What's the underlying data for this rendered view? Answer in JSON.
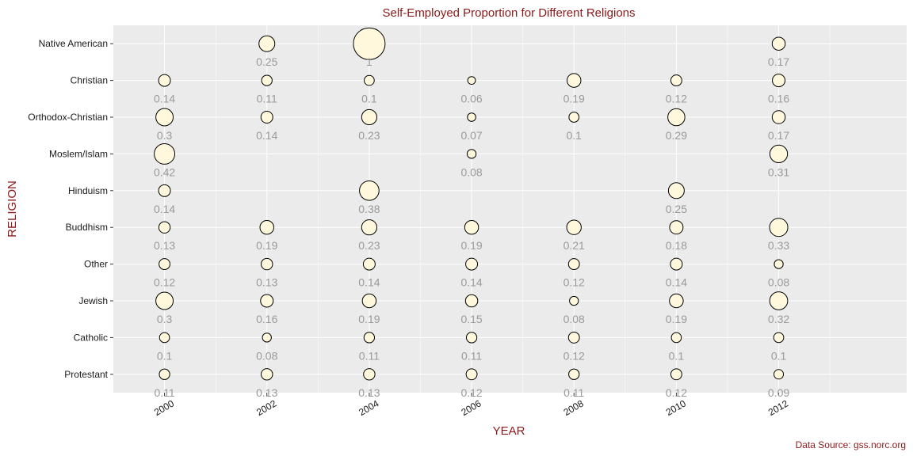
{
  "colors": {
    "panel_background": "#ebebeb",
    "grid": "#ffffff",
    "bubble_fill": "#fff8dc",
    "bubble_stroke": "#000000",
    "title_text": "#8b1a1a",
    "data_label": "#9a9a9a"
  },
  "chart_data": {
    "type": "scatter",
    "subtype": "bubble",
    "title": "Self-Employed Proportion for Different Religions",
    "xlabel": "YEAR",
    "ylabel": "RELIGION",
    "caption": "Data Source: gss.norc.org",
    "x_ticks": [
      "2000",
      "2002",
      "2004",
      "2006",
      "2008",
      "2010",
      "2012"
    ],
    "y_categories": [
      "Native American",
      "Christian",
      "Orthodox-Christian",
      "Moslem/Islam",
      "Hinduism",
      "Buddhism",
      "Other",
      "Jewish",
      "Catholic",
      "Protestant"
    ],
    "xlim": [
      1999,
      2014.5
    ],
    "grid": true,
    "legend": "none",
    "points": [
      {
        "religion": "Native American",
        "year": 2002,
        "value": 0.25,
        "label": "0.25"
      },
      {
        "religion": "Native American",
        "year": 2004,
        "value": 1,
        "label": "1"
      },
      {
        "religion": "Native American",
        "year": 2012,
        "value": 0.17,
        "label": "0.17"
      },
      {
        "religion": "Christian",
        "year": 2000,
        "value": 0.14,
        "label": "0.14"
      },
      {
        "religion": "Christian",
        "year": 2002,
        "value": 0.11,
        "label": "0.11"
      },
      {
        "religion": "Christian",
        "year": 2004,
        "value": 0.1,
        "label": "0.1"
      },
      {
        "religion": "Christian",
        "year": 2006,
        "value": 0.06,
        "label": "0.06"
      },
      {
        "religion": "Christian",
        "year": 2008,
        "value": 0.19,
        "label": "0.19"
      },
      {
        "religion": "Christian",
        "year": 2010,
        "value": 0.12,
        "label": "0.12"
      },
      {
        "religion": "Christian",
        "year": 2012,
        "value": 0.16,
        "label": "0.16"
      },
      {
        "religion": "Orthodox-Christian",
        "year": 2000,
        "value": 0.3,
        "label": "0.3"
      },
      {
        "religion": "Orthodox-Christian",
        "year": 2002,
        "value": 0.14,
        "label": "0.14"
      },
      {
        "religion": "Orthodox-Christian",
        "year": 2004,
        "value": 0.23,
        "label": "0.23"
      },
      {
        "religion": "Orthodox-Christian",
        "year": 2006,
        "value": 0.07,
        "label": "0.07"
      },
      {
        "religion": "Orthodox-Christian",
        "year": 2008,
        "value": 0.1,
        "label": "0.1"
      },
      {
        "religion": "Orthodox-Christian",
        "year": 2010,
        "value": 0.29,
        "label": "0.29"
      },
      {
        "religion": "Orthodox-Christian",
        "year": 2012,
        "value": 0.17,
        "label": "0.17"
      },
      {
        "religion": "Moslem/Islam",
        "year": 2000,
        "value": 0.42,
        "label": "0.42"
      },
      {
        "religion": "Moslem/Islam",
        "year": 2006,
        "value": 0.08,
        "label": "0.08"
      },
      {
        "religion": "Moslem/Islam",
        "year": 2012,
        "value": 0.31,
        "label": "0.31"
      },
      {
        "religion": "Hinduism",
        "year": 2000,
        "value": 0.14,
        "label": "0.14"
      },
      {
        "religion": "Hinduism",
        "year": 2004,
        "value": 0.38,
        "label": "0.38"
      },
      {
        "religion": "Hinduism",
        "year": 2010,
        "value": 0.25,
        "label": "0.25"
      },
      {
        "religion": "Buddhism",
        "year": 2000,
        "value": 0.13,
        "label": "0.13"
      },
      {
        "religion": "Buddhism",
        "year": 2002,
        "value": 0.19,
        "label": "0.19"
      },
      {
        "religion": "Buddhism",
        "year": 2004,
        "value": 0.23,
        "label": "0.23"
      },
      {
        "religion": "Buddhism",
        "year": 2006,
        "value": 0.19,
        "label": "0.19"
      },
      {
        "religion": "Buddhism",
        "year": 2008,
        "value": 0.21,
        "label": "0.21"
      },
      {
        "religion": "Buddhism",
        "year": 2010,
        "value": 0.18,
        "label": "0.18"
      },
      {
        "religion": "Buddhism",
        "year": 2012,
        "value": 0.33,
        "label": "0.33"
      },
      {
        "religion": "Other",
        "year": 2000,
        "value": 0.12,
        "label": "0.12"
      },
      {
        "religion": "Other",
        "year": 2002,
        "value": 0.13,
        "label": "0.13"
      },
      {
        "religion": "Other",
        "year": 2004,
        "value": 0.14,
        "label": "0.14"
      },
      {
        "religion": "Other",
        "year": 2006,
        "value": 0.14,
        "label": "0.14"
      },
      {
        "religion": "Other",
        "year": 2008,
        "value": 0.12,
        "label": "0.12"
      },
      {
        "religion": "Other",
        "year": 2010,
        "value": 0.14,
        "label": "0.14"
      },
      {
        "religion": "Other",
        "year": 2012,
        "value": 0.08,
        "label": "0.08"
      },
      {
        "religion": "Jewish",
        "year": 2000,
        "value": 0.3,
        "label": "0.3"
      },
      {
        "religion": "Jewish",
        "year": 2002,
        "value": 0.16,
        "label": "0.16"
      },
      {
        "religion": "Jewish",
        "year": 2004,
        "value": 0.19,
        "label": "0.19"
      },
      {
        "religion": "Jewish",
        "year": 2006,
        "value": 0.15,
        "label": "0.15"
      },
      {
        "religion": "Jewish",
        "year": 2008,
        "value": 0.08,
        "label": "0.08"
      },
      {
        "religion": "Jewish",
        "year": 2010,
        "value": 0.19,
        "label": "0.19"
      },
      {
        "religion": "Jewish",
        "year": 2012,
        "value": 0.32,
        "label": "0.32"
      },
      {
        "religion": "Catholic",
        "year": 2000,
        "value": 0.1,
        "label": "0.1"
      },
      {
        "religion": "Catholic",
        "year": 2002,
        "value": 0.08,
        "label": "0.08"
      },
      {
        "religion": "Catholic",
        "year": 2004,
        "value": 0.11,
        "label": "0.11"
      },
      {
        "religion": "Catholic",
        "year": 2006,
        "value": 0.11,
        "label": "0.11"
      },
      {
        "religion": "Catholic",
        "year": 2008,
        "value": 0.12,
        "label": "0.12"
      },
      {
        "religion": "Catholic",
        "year": 2010,
        "value": 0.1,
        "label": "0.1"
      },
      {
        "religion": "Catholic",
        "year": 2012,
        "value": 0.1,
        "label": "0.1"
      },
      {
        "religion": "Protestant",
        "year": 2000,
        "value": 0.11,
        "label": "0.11"
      },
      {
        "religion": "Protestant",
        "year": 2002,
        "value": 0.13,
        "label": "0.13"
      },
      {
        "religion": "Protestant",
        "year": 2004,
        "value": 0.13,
        "label": "0.13"
      },
      {
        "religion": "Protestant",
        "year": 2006,
        "value": 0.12,
        "label": "0.12"
      },
      {
        "religion": "Protestant",
        "year": 2008,
        "value": 0.11,
        "label": "0.11"
      },
      {
        "religion": "Protestant",
        "year": 2010,
        "value": 0.12,
        "label": "0.12"
      },
      {
        "religion": "Protestant",
        "year": 2012,
        "value": 0.09,
        "label": "0.09"
      }
    ]
  }
}
